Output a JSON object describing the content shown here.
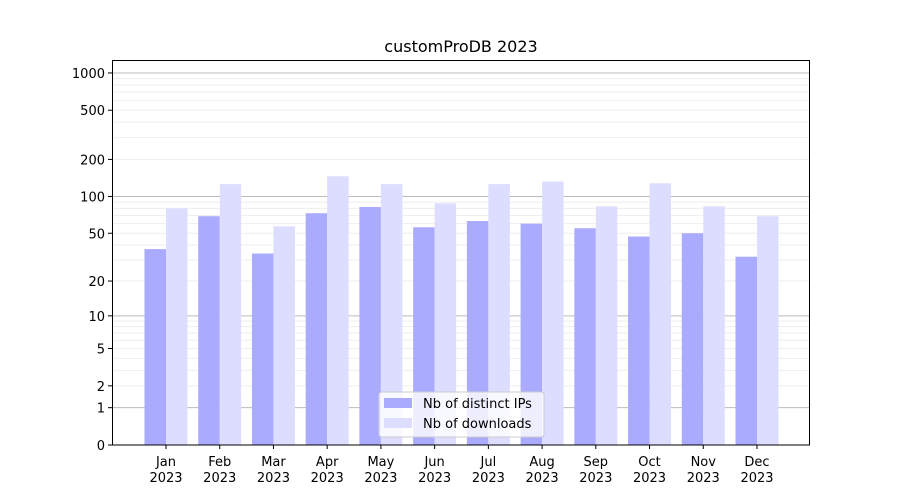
{
  "chart_data": {
    "type": "bar",
    "title": "customProDB 2023",
    "xlabel": "",
    "ylabel": "",
    "yscale": "log10(y+1)",
    "ylim": [
      0,
      1300
    ],
    "yticks": [
      0,
      1,
      2,
      5,
      10,
      20,
      50,
      100,
      200,
      500,
      1000
    ],
    "grid": true,
    "legend_position": "bottom-center",
    "categories": [
      "Jan\n2023",
      "Feb\n2023",
      "Mar\n2023",
      "Apr\n2023",
      "May\n2023",
      "Jun\n2023",
      "Jul\n2023",
      "Aug\n2023",
      "Sep\n2023",
      "Oct\n2023",
      "Nov\n2023",
      "Dec\n2023"
    ],
    "series": [
      {
        "name": "Nb of distinct IPs",
        "color": "#aaaaff",
        "values": [
          37,
          69,
          34,
          73,
          82,
          56,
          63,
          60,
          55,
          47,
          50,
          32
        ]
      },
      {
        "name": "Nb of downloads",
        "color": "#ddddff",
        "values": [
          80,
          126,
          57,
          146,
          126,
          88,
          126,
          132,
          83,
          128,
          83,
          69
        ]
      }
    ]
  }
}
